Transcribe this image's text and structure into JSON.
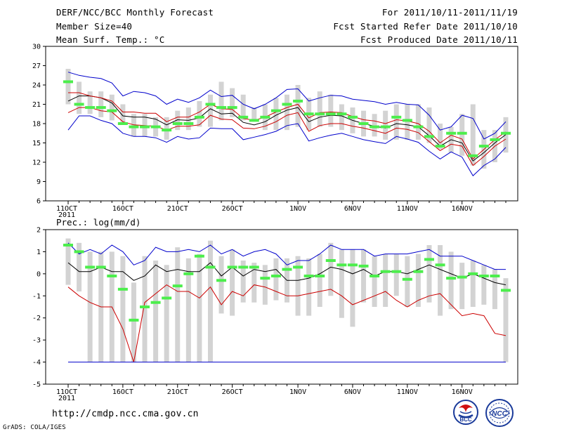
{
  "header": {
    "title": "DERF/NCC/BCC Monthly Forecast",
    "member_size": "Member Size=40",
    "variable": "Mean Surf. Temp.: °C",
    "period": "For 2011/10/11-2011/11/19",
    "refer_date": "Fcst Started Refer Date 2011/10/10",
    "produced_date": "Fcst Produced Date 2011/10/11"
  },
  "footer": {
    "url": "http://cmdp.ncc.cma.gov.cn",
    "credit": "GrADS: COLA/IGES",
    "logo_bcc_label": "BCC",
    "logo_ncc_label": "NCC"
  },
  "colors": {
    "bar": "#d3d3d3",
    "member": "#4cee4c",
    "upper": "#0000cc",
    "lower": "#0000cc",
    "mean": "#000000",
    "spread": "#cc0000"
  },
  "chart_data": [
    {
      "type": "line",
      "title": "Mean Surf. Temp.: °C",
      "xlabel": "",
      "ylabel": "",
      "x_tick_labels": [
        "11OCT",
        "16OCT",
        "21OCT",
        "26OCT",
        "1NOV",
        "6NOV",
        "11NOV",
        "16NOV"
      ],
      "x_tick_index": [
        0,
        5,
        10,
        15,
        21,
        26,
        31,
        36
      ],
      "year_label": "2011",
      "ylim": [
        6,
        30
      ],
      "y_ticks": [
        6,
        9,
        12,
        15,
        18,
        21,
        24,
        27,
        30
      ],
      "bars_low": [
        21,
        19.5,
        19.5,
        19,
        18.5,
        18,
        16,
        16,
        16,
        15.5,
        17,
        17,
        17.5,
        17.5,
        18.5,
        19,
        18.5,
        18.5,
        17,
        17,
        17,
        17.5,
        17,
        17.5,
        17.5,
        17,
        16.5,
        16,
        16,
        15.5,
        15.5,
        15.5,
        15.5,
        15,
        14,
        13.5,
        13,
        11.5,
        11,
        12,
        13.5
      ],
      "bars_high": [
        26.5,
        24.5,
        23,
        23,
        22.5,
        21,
        19.5,
        19.5,
        19,
        19,
        20,
        20.5,
        21.5,
        22.5,
        24.5,
        23.5,
        22.5,
        20.5,
        21,
        22,
        22.5,
        24,
        22,
        23,
        22.5,
        21,
        20.5,
        20,
        19.5,
        20,
        21,
        21,
        21,
        20.5,
        18,
        17.5,
        19.5,
        21,
        17,
        17,
        19
      ],
      "members": [
        24.5,
        21,
        20.5,
        20.5,
        20,
        18,
        17.5,
        17.5,
        17.5,
        17,
        18,
        18,
        19,
        21,
        20.5,
        20.5,
        19,
        18.5,
        19,
        20,
        21,
        21.5,
        19.5,
        19.5,
        19.5,
        19.5,
        19,
        18,
        17.5,
        17.5,
        19,
        18.5,
        17.5,
        16,
        14.5,
        16.5,
        16.5,
        13,
        14.5,
        15.5,
        16.5
      ],
      "series": [
        {
          "name": "upper",
          "values": [
            26,
            25.5,
            25.2,
            25,
            24.3,
            22.3,
            23,
            22.8,
            22.3,
            21,
            21.8,
            21.3,
            22,
            23.2,
            22.2,
            22.4,
            21,
            20.3,
            21,
            22,
            23.3,
            23.4,
            21.5,
            22,
            22.4,
            22.3,
            21.8,
            21.6,
            21.4,
            21,
            21.3,
            21,
            20.9,
            19.3,
            17,
            17.5,
            19.3,
            18.8,
            15.6,
            16.5,
            18.3
          ]
        },
        {
          "name": "mean",
          "values": [
            21.5,
            22.3,
            22.3,
            22,
            21.2,
            19.2,
            19,
            19,
            18.7,
            17.8,
            18.6,
            18.5,
            18.9,
            20.3,
            19.5,
            19.6,
            18.2,
            17.8,
            18.3,
            19.3,
            20.1,
            20.5,
            18.3,
            19,
            19.3,
            19.2,
            18.5,
            18,
            17.6,
            17.3,
            18,
            17.8,
            17.5,
            16.1,
            14.5,
            15.5,
            15,
            12.2,
            13.5,
            15,
            16.3
          ]
        },
        {
          "name": "spread_hi",
          "values": [
            22.8,
            22.8,
            22.3,
            22,
            21.5,
            19.8,
            19.8,
            19.6,
            19.6,
            18.3,
            19,
            19,
            19.8,
            21,
            20.3,
            20.2,
            18.8,
            18.5,
            19,
            19.8,
            20.5,
            21,
            18.9,
            19.7,
            19.8,
            19.7,
            19.1,
            18.6,
            18.4,
            18,
            18.6,
            18.4,
            18,
            16.8,
            15,
            16.2,
            15.6,
            12.5,
            14,
            15.5,
            16.7
          ]
        },
        {
          "name": "spread_lo",
          "values": [
            19.7,
            20.5,
            20.5,
            20,
            19.8,
            18.3,
            17.8,
            17.7,
            17.6,
            17,
            17.6,
            17.6,
            17.8,
            19.3,
            18.7,
            18.6,
            17.3,
            17.2,
            17.6,
            18.3,
            19.3,
            19.7,
            16.8,
            17.7,
            18,
            18,
            17.6,
            17.3,
            16.9,
            16.5,
            17.3,
            17.1,
            16.6,
            15.2,
            13.8,
            14.8,
            14.5,
            11.5,
            12.9,
            14.5,
            15.6
          ]
        },
        {
          "name": "lower",
          "values": [
            17,
            19.2,
            19.2,
            18.5,
            18,
            16.5,
            16,
            16,
            15.8,
            15.1,
            16,
            15.6,
            15.8,
            17.3,
            17.2,
            17.2,
            15.5,
            15.9,
            16.3,
            16.8,
            17.7,
            18,
            15.3,
            15.8,
            16.2,
            16.5,
            16,
            15.5,
            15.2,
            14.9,
            16,
            15.6,
            15.1,
            13.7,
            12.5,
            13.6,
            12.8,
            9.9,
            11.5,
            12.5,
            14.3
          ]
        }
      ]
    },
    {
      "type": "line",
      "title": "Prec.: log(mm/d)",
      "xlabel": "",
      "ylabel": "",
      "x_tick_labels": [
        "11OCT",
        "16OCT",
        "21OCT",
        "26OCT",
        "1NOV",
        "6NOV",
        "11NOV",
        "16NOV"
      ],
      "x_tick_index": [
        0,
        5,
        10,
        15,
        21,
        26,
        31,
        36
      ],
      "year_label": "2011",
      "ylim": [
        -5,
        2
      ],
      "y_ticks": [
        -5,
        -4,
        -3,
        -2,
        -1,
        0,
        1,
        2
      ],
      "bars_low": [
        -0.5,
        -0.8,
        -4,
        -4,
        -4,
        -4,
        -4,
        -4,
        -4,
        -4,
        -4,
        -4,
        -4,
        -4,
        -1.8,
        -1.9,
        -1.3,
        -1.3,
        -1.4,
        -1.2,
        -1.3,
        -1.9,
        -1.9,
        -1.5,
        -1,
        -2,
        -2.4,
        -1.3,
        -1.5,
        -1.5,
        -1,
        -1.5,
        -1.5,
        -1.3,
        -1.9,
        -1.6,
        -1.6,
        -1.5,
        -1.4,
        -1.6,
        -4
      ],
      "bars_high": [
        1.6,
        1.4,
        1,
        1,
        1,
        0.8,
        -0.4,
        0.8,
        0.6,
        0.4,
        1.2,
        0.7,
        0.9,
        1.5,
        0.8,
        1.1,
        0.6,
        0.5,
        0.4,
        0.7,
        0.7,
        0.8,
        0.7,
        0.9,
        1.4,
        1.1,
        1.1,
        1.1,
        0.8,
        0.9,
        0.9,
        0.8,
        0.9,
        1.3,
        1.3,
        1,
        0.5,
        0.6,
        0.4,
        0.2,
        -0.2
      ],
      "members": [
        1.3,
        1,
        0.3,
        0.3,
        -0.1,
        -0.7,
        -2.1,
        -1.5,
        -1.3,
        -1.1,
        -0.55,
        0,
        0.8,
        0.3,
        -0.3,
        0.3,
        0.3,
        0.3,
        -0.2,
        -0.1,
        0.2,
        0.3,
        -0.1,
        -0.1,
        0.6,
        0.4,
        0.4,
        0.35,
        -0.1,
        0.1,
        0.1,
        -0.25,
        0.1,
        0.65,
        0.4,
        -0.2,
        -0.15,
        0,
        -0.1,
        -0.1,
        -0.75
      ],
      "series": [
        {
          "name": "upper",
          "values": [
            1.4,
            0.9,
            1.1,
            0.9,
            1.3,
            1.0,
            0.4,
            0.6,
            1.2,
            1.0,
            1.0,
            1.1,
            1.0,
            1.3,
            0.9,
            1.1,
            0.8,
            1.0,
            1.1,
            0.9,
            0.4,
            0.6,
            0.6,
            0.9,
            1.3,
            1.1,
            1.1,
            1.1,
            0.8,
            0.9,
            0.9,
            0.9,
            1.0,
            1.1,
            0.8,
            0.8,
            0.8,
            0.6,
            0.4,
            0.2,
            0.2
          ]
        },
        {
          "name": "mean",
          "values": [
            0.5,
            0.1,
            0.1,
            0.3,
            0.1,
            0.1,
            -0.3,
            -0.1,
            0.4,
            0.1,
            0.2,
            0.1,
            0.1,
            0.5,
            -0.1,
            0.3,
            -0.1,
            0.2,
            0.1,
            0.2,
            -0.3,
            -0.3,
            -0.2,
            0.0,
            0.3,
            0.2,
            0.0,
            0.2,
            -0.1,
            0.1,
            0.1,
            0.0,
            0.2,
            0.4,
            0.2,
            0.0,
            -0.2,
            0.0,
            -0.2,
            -0.4,
            -0.5
          ]
        },
        {
          "name": "spread_lo",
          "values": [
            -0.6,
            -1.0,
            -1.3,
            -1.5,
            -1.5,
            -2.5,
            -4,
            -1.3,
            -0.9,
            -0.5,
            -0.8,
            -0.8,
            -1.1,
            -0.6,
            -1.4,
            -0.8,
            -1.0,
            -0.5,
            -0.6,
            -0.8,
            -1.0,
            -1.0,
            -0.9,
            -0.8,
            -0.7,
            -1.0,
            -1.4,
            -1.2,
            -1.0,
            -0.8,
            -1.2,
            -1.5,
            -1.2,
            -1.0,
            -0.9,
            -1.4,
            -1.9,
            -1.8,
            -1.9,
            -2.7,
            -2.8
          ]
        },
        {
          "name": "lower",
          "values": [
            -4,
            -4,
            -4,
            -4,
            -4,
            -4,
            -4,
            -4,
            -4,
            -4,
            -4,
            -4,
            -4,
            -4,
            -4,
            -4,
            -4,
            -4,
            -4,
            -4,
            -4,
            -4,
            -4,
            -4,
            -4,
            -4,
            -4,
            -4,
            -4,
            -4,
            -4,
            -4,
            -4,
            -4,
            -4,
            -4,
            -4,
            -4,
            -4,
            -4,
            -4
          ]
        }
      ]
    }
  ]
}
